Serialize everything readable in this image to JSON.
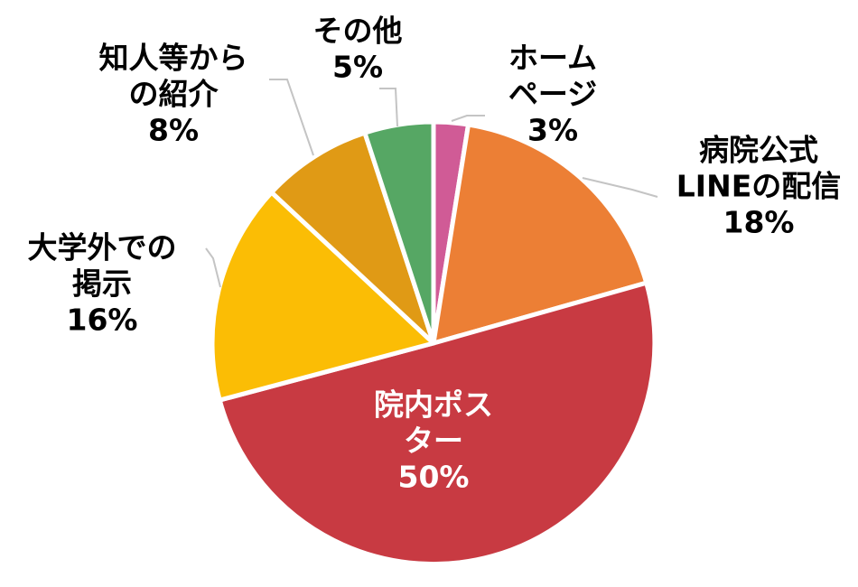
{
  "chart_data": {
    "type": "pie",
    "title": "",
    "start_angle_deg": 0,
    "direction": "clockwise",
    "slices": [
      {
        "label_lines": [
          "ホーム",
          "ページ"
        ],
        "percent_label": "3%",
        "value": 2.5,
        "color": "#D05B96"
      },
      {
        "label_lines": [
          "病院公式",
          "LINEの配信"
        ],
        "percent_label": "18%",
        "value": 18,
        "color": "#EC7F35"
      },
      {
        "label_lines": [
          "院内ポス",
          "ター"
        ],
        "percent_label": "50%",
        "value": 50,
        "color": "#C83A42"
      },
      {
        "label_lines": [
          "大学外での",
          "掲示"
        ],
        "percent_label": "16%",
        "value": 16,
        "color": "#FBBD05"
      },
      {
        "label_lines": [
          "知人等から",
          "の紹介"
        ],
        "percent_label": "8%",
        "value": 8,
        "color": "#E09A15"
      },
      {
        "label_lines": [
          "その他"
        ],
        "percent_label": "5%",
        "value": 5,
        "color": "#56A764"
      }
    ]
  }
}
